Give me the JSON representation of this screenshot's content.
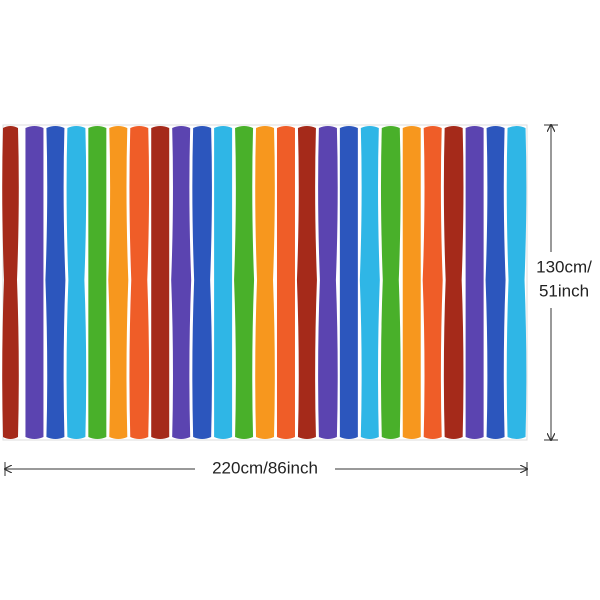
{
  "dimensions": {
    "height": [
      "130cm/",
      "51inch"
    ],
    "width": "220cm/86inch"
  }
}
